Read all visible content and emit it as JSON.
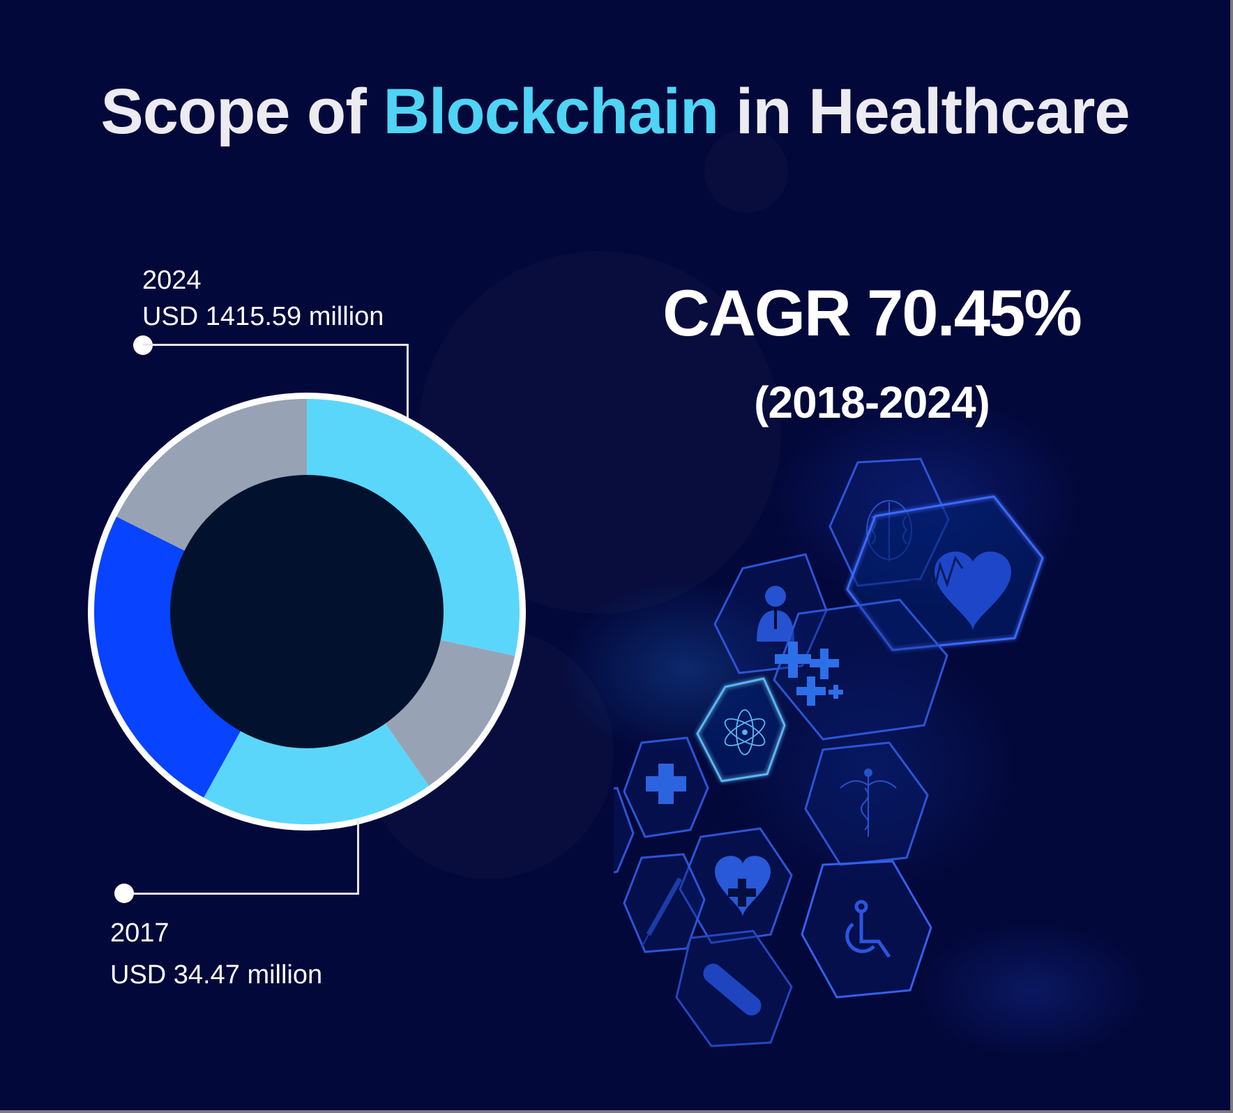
{
  "title": {
    "prefix": "Scope of ",
    "highlight": "Blockchain",
    "suffix": " in Healthcare"
  },
  "colors": {
    "background": "#03083a",
    "title_text": "#ecebf2",
    "title_accent": "#4fd4f5",
    "segment_cyan": "#5bd6fb",
    "segment_gray": "#97a3b4",
    "segment_blue": "#0843ff",
    "donut_hole": "#02122e",
    "hex_stroke": "#2f5fe0",
    "hex_icon": "#2b63e6"
  },
  "annotations": {
    "top": {
      "year": "2024",
      "value": "USD 1415.59 million"
    },
    "bottom": {
      "year": "2017",
      "value": "USD 34.47 million"
    }
  },
  "cagr": {
    "label": "CAGR 70.45%",
    "period": "(2018-2024)"
  },
  "decor_icons": [
    "brain-icon",
    "heart-pulse-icon",
    "doctor-icon",
    "medical-crosses-icon",
    "atom-icon",
    "medical-cross-icon",
    "caduceus-icon",
    "test-tube-icon",
    "heart-cross-icon",
    "syringe-icon",
    "wheelchair-icon",
    "pill-icon"
  ],
  "chart_data": {
    "type": "pie",
    "subtype": "donut",
    "title": "Scope of Blockchain in Healthcare",
    "note": "Decorative donut; segment proportions estimated from arc angles (clockwise from top)",
    "segments": [
      {
        "label": "Segment 1 (cyan, top-right)",
        "color": "#5bd6fb",
        "start_deg": 0,
        "end_deg": 102,
        "share_pct": 28.3
      },
      {
        "label": "Segment 2 (gray, right)",
        "color": "#97a3b4",
        "start_deg": 102,
        "end_deg": 145,
        "share_pct": 11.9
      },
      {
        "label": "Segment 3 (cyan, bottom)",
        "color": "#5bd6fb",
        "start_deg": 145,
        "end_deg": 209,
        "share_pct": 17.8
      },
      {
        "label": "Segment 4 (blue, left)",
        "color": "#0843ff",
        "start_deg": 209,
        "end_deg": 296.5,
        "share_pct": 24.3
      },
      {
        "label": "Segment 5 (gray, top-left)",
        "color": "#97a3b4",
        "start_deg": 296.5,
        "end_deg": 360,
        "share_pct": 17.6
      }
    ],
    "annotations": [
      {
        "year": 2024,
        "value_usd_million": 1415.59,
        "text": "USD 1415.59 million"
      },
      {
        "year": 2017,
        "value_usd_million": 34.47,
        "text": "USD 34.47 million"
      }
    ],
    "cagr_pct": 70.45,
    "cagr_period": "2018-2024"
  }
}
